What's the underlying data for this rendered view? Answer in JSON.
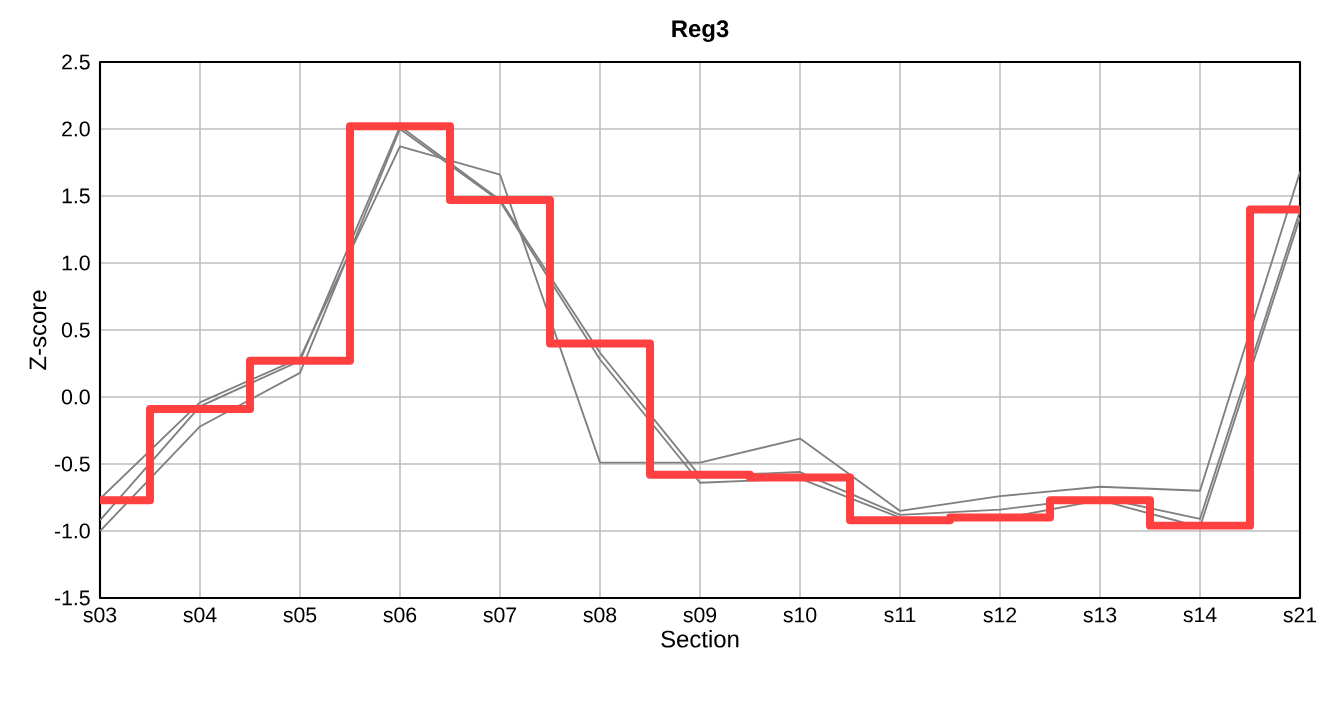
{
  "chart_data": {
    "type": "line",
    "title": "Reg3",
    "xlabel": "Section",
    "ylabel": "Z-score",
    "categories": [
      "s03",
      "s04",
      "s05",
      "s06",
      "s07",
      "s08",
      "s09",
      "s10",
      "s11",
      "s12",
      "s13",
      "s14",
      "s21"
    ],
    "series": [
      {
        "color": "#808080",
        "values": [
          -0.76,
          -0.04,
          0.29,
          1.87,
          1.66,
          -0.49,
          -0.49,
          -0.31,
          -0.85,
          -0.74,
          -0.67,
          -0.7,
          1.68
        ]
      },
      {
        "color": "#808080",
        "values": [
          -0.92,
          -0.07,
          0.27,
          2.02,
          1.47,
          0.33,
          -0.59,
          -0.56,
          -0.88,
          -0.84,
          -0.75,
          -0.91,
          1.39
        ]
      },
      {
        "color": "#808080",
        "values": [
          -1.0,
          -0.22,
          0.18,
          2.0,
          1.46,
          0.28,
          -0.64,
          -0.61,
          -0.9,
          -0.91,
          -0.77,
          -0.97,
          1.34
        ]
      },
      {
        "type": "step",
        "color": "#ff4040",
        "values": [
          -0.77,
          -0.09,
          0.27,
          2.02,
          1.47,
          0.4,
          -0.58,
          -0.6,
          -0.92,
          -0.9,
          -0.77,
          -0.96,
          1.4
        ]
      }
    ],
    "ylim": [
      -1.5,
      2.5
    ],
    "yticks": [
      {
        "value": -1.5,
        "label": "-1.5"
      },
      {
        "value": -1,
        "label": "-1.0"
      },
      {
        "value": -0.5,
        "label": "-0.5"
      },
      {
        "value": 0,
        "label": "0.0"
      },
      {
        "value": 0.5,
        "label": "0.5"
      },
      {
        "value": 1,
        "label": "1.0"
      },
      {
        "value": 1.5,
        "label": "1.5"
      },
      {
        "value": 2,
        "label": "2.0"
      },
      {
        "value": 2.5,
        "label": "2.5"
      }
    ],
    "grid": true,
    "marker": "none"
  }
}
